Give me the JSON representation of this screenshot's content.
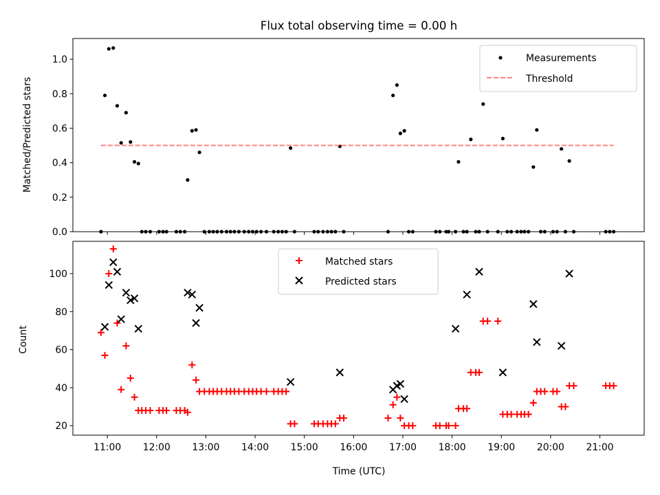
{
  "chart_data": [
    {
      "type": "scatter",
      "title": "Flux total observing time = 0.00 h",
      "xlabel": "",
      "ylabel": "Matched/Predicted stars",
      "xlim": [
        10.3,
        21.9
      ],
      "ylim": [
        0,
        1.12
      ],
      "yticks": [
        0.0,
        0.2,
        0.4,
        0.6,
        0.8,
        1.0
      ],
      "ytick_labels": [
        "0.0",
        "0.2",
        "0.4",
        "0.6",
        "0.8",
        "1.0"
      ],
      "legend_position": "top-right",
      "series": [
        {
          "name": "Measurements",
          "style": "dot",
          "color": "#000000",
          "x": [
            10.87,
            10.95,
            11.03,
            11.12,
            11.2,
            11.28,
            11.38,
            11.47,
            11.55,
            11.63,
            11.7,
            11.78,
            11.87,
            12.05,
            12.13,
            12.2,
            12.4,
            12.48,
            12.57,
            12.63,
            12.72,
            12.8,
            12.87,
            12.97,
            13.07,
            13.15,
            13.23,
            13.32,
            13.42,
            13.5,
            13.58,
            13.67,
            13.78,
            13.87,
            13.95,
            14.03,
            14.12,
            14.23,
            14.38,
            14.47,
            14.55,
            14.63,
            14.72,
            14.8,
            15.2,
            15.28,
            15.38,
            15.47,
            15.55,
            15.63,
            15.72,
            15.8,
            16.7,
            16.8,
            16.88,
            16.95,
            17.03,
            17.12,
            17.2,
            17.67,
            17.75,
            17.88,
            17.93,
            18.07,
            18.13,
            18.23,
            18.3,
            18.38,
            18.48,
            18.55,
            18.63,
            18.72,
            18.93,
            19.03,
            19.12,
            19.2,
            19.32,
            19.4,
            19.47,
            19.55,
            19.65,
            19.72,
            19.8,
            19.88,
            20.05,
            20.13,
            20.22,
            20.3,
            20.38,
            20.47,
            21.12,
            21.2,
            21.28
          ],
          "y": [
            0.0,
            0.79,
            1.06,
            1.065,
            0.73,
            0.515,
            0.69,
            0.52,
            0.405,
            0.395,
            0.0,
            0.0,
            0.0,
            0.0,
            0.0,
            0.0,
            0.0,
            0.0,
            0.0,
            0.3,
            0.585,
            0.59,
            0.46,
            0.0,
            0.0,
            0.0,
            0.0,
            0.0,
            0.0,
            0.0,
            0.0,
            0.0,
            0.0,
            0.0,
            0.0,
            0.0,
            0.0,
            0.0,
            0.0,
            0.0,
            0.0,
            0.0,
            0.485,
            0.0,
            0.0,
            0.0,
            0.0,
            0.0,
            0.0,
            0.0,
            0.495,
            0.0,
            0.0,
            0.79,
            0.85,
            0.57,
            0.585,
            0.0,
            0.0,
            0.0,
            0.0,
            0.0,
            0.0,
            0.0,
            0.405,
            0.0,
            0.0,
            0.535,
            0.0,
            0.0,
            0.74,
            0.0,
            0.0,
            0.54,
            0.0,
            0.0,
            0.0,
            0.0,
            0.0,
            0.0,
            0.375,
            0.59,
            0.0,
            0.0,
            0.0,
            0.0,
            0.48,
            0.0,
            0.41,
            0.0,
            0.0,
            0.0,
            0.0
          ]
        },
        {
          "name": "Threshold",
          "style": "dashed-line",
          "color": "#ff7f7f",
          "x": [
            10.87,
            21.28
          ],
          "y": [
            0.5,
            0.5
          ]
        }
      ]
    },
    {
      "type": "scatter",
      "title": "",
      "xlabel": "Time (UTC)",
      "ylabel": "Count",
      "xlim": [
        10.3,
        21.9
      ],
      "ylim": [
        15,
        117
      ],
      "yticks": [
        20,
        40,
        60,
        80,
        100
      ],
      "ytick_labels": [
        "20",
        "40",
        "60",
        "80",
        "100"
      ],
      "xticks": [
        11,
        12,
        13,
        14,
        15,
        16,
        17,
        18,
        19,
        20,
        21
      ],
      "xtick_labels": [
        "11:00",
        "12:00",
        "13:00",
        "14:00",
        "15:00",
        "16:00",
        "17:00",
        "18:00",
        "19:00",
        "20:00",
        "21:00"
      ],
      "legend_position": "top-center",
      "series": [
        {
          "name": "Matched stars",
          "style": "plus",
          "color": "#ff0000",
          "x": [
            10.87,
            10.95,
            11.03,
            11.12,
            11.2,
            11.28,
            11.38,
            11.47,
            11.55,
            11.63,
            11.7,
            11.78,
            11.87,
            12.05,
            12.13,
            12.2,
            12.4,
            12.48,
            12.57,
            12.63,
            12.72,
            12.8,
            12.87,
            12.97,
            13.07,
            13.15,
            13.23,
            13.32,
            13.42,
            13.5,
            13.58,
            13.67,
            13.78,
            13.87,
            13.95,
            14.03,
            14.12,
            14.23,
            14.38,
            14.47,
            14.55,
            14.63,
            14.72,
            14.8,
            15.2,
            15.28,
            15.38,
            15.47,
            15.55,
            15.63,
            15.72,
            15.8,
            16.7,
            16.8,
            16.88,
            16.95,
            17.03,
            17.12,
            17.2,
            17.67,
            17.75,
            17.88,
            17.93,
            18.07,
            18.13,
            18.23,
            18.3,
            18.38,
            18.48,
            18.55,
            18.63,
            18.72,
            18.93,
            19.03,
            19.12,
            19.2,
            19.32,
            19.4,
            19.47,
            19.55,
            19.65,
            19.72,
            19.8,
            19.88,
            20.05,
            20.13,
            20.22,
            20.3,
            20.38,
            20.47,
            21.12,
            21.2,
            21.28
          ],
          "y": [
            69,
            57,
            100,
            113,
            74,
            39,
            62,
            45,
            35,
            28,
            28,
            28,
            28,
            28,
            28,
            28,
            28,
            28,
            28,
            27,
            52,
            44,
            38,
            38,
            38,
            38,
            38,
            38,
            38,
            38,
            38,
            38,
            38,
            38,
            38,
            38,
            38,
            38,
            38,
            38,
            38,
            38,
            21,
            21,
            21,
            21,
            21,
            21,
            21,
            21,
            24,
            24,
            24,
            31,
            35,
            24,
            20,
            20,
            20,
            20,
            20,
            20,
            20,
            20,
            29,
            29,
            29,
            48,
            48,
            48,
            75,
            75,
            75,
            26,
            26,
            26,
            26,
            26,
            26,
            26,
            32,
            38,
            38,
            38,
            38,
            38,
            30,
            30,
            41,
            41,
            41,
            41,
            41
          ]
        },
        {
          "name": "Predicted stars",
          "style": "x",
          "color": "#000000",
          "x": [
            10.95,
            11.03,
            11.12,
            11.2,
            11.28,
            11.38,
            11.47,
            11.55,
            11.63,
            12.63,
            12.72,
            12.8,
            12.87,
            14.72,
            15.72,
            16.8,
            16.88,
            16.95,
            17.03,
            18.07,
            18.3,
            18.55,
            19.03,
            19.65,
            19.72,
            20.22,
            20.38
          ],
          "y": [
            72,
            94,
            106,
            101,
            76,
            90,
            86,
            87,
            71,
            90,
            89,
            74,
            82,
            43,
            48,
            39,
            41,
            42,
            34,
            71,
            89,
            101,
            48,
            84,
            64,
            62,
            100
          ]
        }
      ]
    }
  ]
}
